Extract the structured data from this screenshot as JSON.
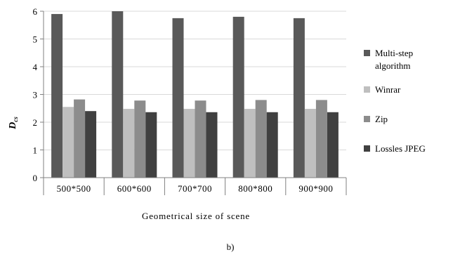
{
  "chart_data": {
    "type": "bar",
    "categories": [
      "500*500",
      "600*600",
      "700*700",
      "800*800",
      "900*900"
    ],
    "series": [
      {
        "name": "Multi-step algorithm",
        "values": [
          5.9,
          6.0,
          5.75,
          5.8,
          5.75
        ],
        "color": "#595959",
        "legend_lines": [
          "Multi-step",
          "algorithm"
        ]
      },
      {
        "name": "Winrar",
        "values": [
          2.55,
          2.48,
          2.48,
          2.48,
          2.48
        ],
        "color": "#bfbfbf",
        "legend_lines": [
          "Winrar"
        ]
      },
      {
        "name": "Zip",
        "values": [
          2.82,
          2.78,
          2.78,
          2.8,
          2.8
        ],
        "color": "#8c8c8c",
        "legend_lines": [
          "Zip"
        ]
      },
      {
        "name": "Lossles JPEG",
        "values": [
          2.4,
          2.36,
          2.36,
          2.36,
          2.36
        ],
        "color": "#404040",
        "legend_lines": [
          "Lossles JPEG"
        ]
      }
    ],
    "ylim": [
      0,
      6
    ],
    "yticks": [
      "0",
      "1",
      "2",
      "3",
      "4",
      "5",
      "6"
    ],
    "xlabel": "Geometrical  size  of  scene",
    "ylabel": "D",
    "ylabel_sub": "cs",
    "grid": true,
    "legend_position": "right"
  },
  "caption": "b)"
}
